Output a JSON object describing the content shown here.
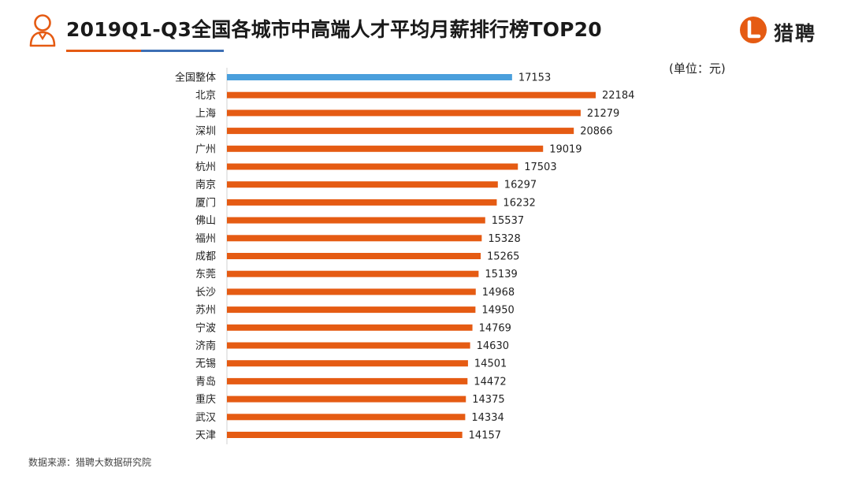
{
  "title": "2019Q1-Q3全国各城市中高端人才平均月薪排行榜TOP20",
  "logo": {
    "text": "猎聘",
    "mark": "L"
  },
  "unit": "(单位：元)",
  "source": "数据来源：猎聘大数据研究院",
  "colors": {
    "highlight": "#4a9fdc",
    "bar": "#e55b13",
    "accent": "#e55b13",
    "accent2": "#3d6fb4"
  },
  "chart_data": {
    "type": "bar",
    "orientation": "horizontal",
    "categories": [
      "全国整体",
      "北京",
      "上海",
      "深圳",
      "广州",
      "杭州",
      "南京",
      "厦门",
      "佛山",
      "福州",
      "成都",
      "东莞",
      "长沙",
      "苏州",
      "宁波",
      "济南",
      "无锡",
      "青岛",
      "重庆",
      "武汉",
      "天津"
    ],
    "values": [
      17153,
      22184,
      21279,
      20866,
      19019,
      17503,
      16297,
      16232,
      15537,
      15328,
      15265,
      15139,
      14968,
      14950,
      14769,
      14630,
      14501,
      14472,
      14375,
      14334,
      14157
    ],
    "highlight_index": 0,
    "xlim": [
      0,
      22184
    ],
    "data_labels": true,
    "grid": false,
    "legend": "none"
  }
}
